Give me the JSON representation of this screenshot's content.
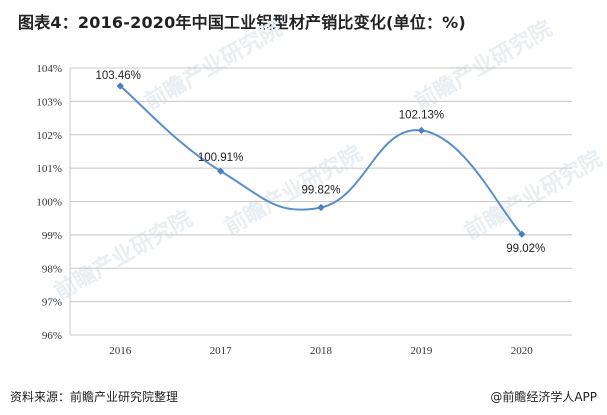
{
  "title": "图表4：2016-2020年中国工业铝型材产销比变化(单位：%)",
  "source": "资料来源：前瞻产业研究院整理",
  "brand": "@前瞻经济学人APP",
  "watermark": "前瞻产业研究院",
  "colors": {
    "line": "#5b8fc9",
    "marker": "#4a7fbf",
    "grid": "#c8c8c8"
  },
  "chart_data": {
    "type": "line",
    "x": [
      "2016",
      "2017",
      "2018",
      "2019",
      "2020"
    ],
    "series": [
      {
        "values": [
          103.46,
          100.91,
          99.82,
          102.13,
          99.02
        ],
        "labels": [
          "103.46%",
          "100.91%",
          "99.82%",
          "102.13%",
          "99.02%"
        ]
      }
    ],
    "ylim": [
      96,
      104
    ],
    "yticks": [
      "96%",
      "97%",
      "98%",
      "99%",
      "100%",
      "101%",
      "102%",
      "103%",
      "104%"
    ],
    "grid": true,
    "smooth": true,
    "markers": "diamond"
  }
}
